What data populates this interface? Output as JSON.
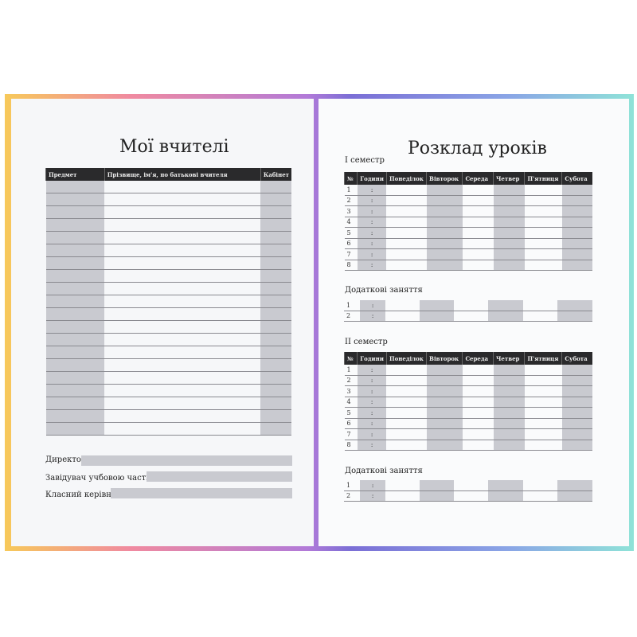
{
  "left": {
    "title": "Мої вчителі",
    "headers": [
      "Предмет",
      "Прізвище, ім'я, по батькові вчителя",
      "Кабінет"
    ],
    "row_count": 20,
    "signatures": [
      "Директор",
      "Завідувач учбовою частиною",
      "Класний керівник"
    ]
  },
  "right": {
    "title": "Розклад уроків",
    "headers": [
      "№",
      "Години",
      "Понеділок",
      "Вівторок",
      "Середа",
      "Четвер",
      "П'ятниця",
      "Субота"
    ],
    "time_sep": ":",
    "sem1": "I семестр",
    "sem2": "II семестр",
    "extra": "Додаткові заняття",
    "lesson_numbers": [
      "1",
      "2",
      "3",
      "4",
      "5",
      "6",
      "7",
      "8"
    ],
    "extra_numbers": [
      "1",
      "2"
    ]
  },
  "colors": {
    "header": "#2a2a2c",
    "shade": "#c9cad0"
  }
}
